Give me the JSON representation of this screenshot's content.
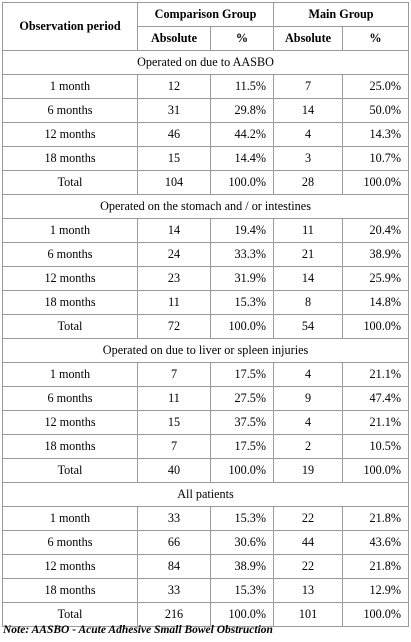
{
  "headers": {
    "observation_period": "Observation period",
    "comparison_group": "Comparison Group",
    "main_group": "Main Group",
    "absolute": "Absolute",
    "percent": "%"
  },
  "sections": [
    {
      "title": "Operated on due to AASBO",
      "rows": [
        {
          "period": "1 month",
          "cg_abs": "12",
          "cg_pct": "11.5%",
          "mg_abs": "7",
          "mg_pct": "25.0%"
        },
        {
          "period": "6 months",
          "cg_abs": "31",
          "cg_pct": "29.8%",
          "mg_abs": "14",
          "mg_pct": "50.0%"
        },
        {
          "period": "12 months",
          "cg_abs": "46",
          "cg_pct": "44.2%",
          "mg_abs": "4",
          "mg_pct": "14.3%"
        },
        {
          "period": "18 months",
          "cg_abs": "15",
          "cg_pct": "14.4%",
          "mg_abs": "3",
          "mg_pct": "10.7%"
        },
        {
          "period": "Total",
          "cg_abs": "104",
          "cg_pct": "100.0%",
          "mg_abs": "28",
          "mg_pct": "100.0%"
        }
      ]
    },
    {
      "title": "Operated on the stomach and / or intestines",
      "rows": [
        {
          "period": "1 month",
          "cg_abs": "14",
          "cg_pct": "19.4%",
          "mg_abs": "11",
          "mg_pct": "20.4%"
        },
        {
          "period": "6 months",
          "cg_abs": "24",
          "cg_pct": "33.3%",
          "mg_abs": "21",
          "mg_pct": "38.9%"
        },
        {
          "period": "12 months",
          "cg_abs": "23",
          "cg_pct": "31.9%",
          "mg_abs": "14",
          "mg_pct": "25.9%"
        },
        {
          "period": "18 months",
          "cg_abs": "11",
          "cg_pct": "15.3%",
          "mg_abs": "8",
          "mg_pct": "14.8%"
        },
        {
          "period": "Total",
          "cg_abs": "72",
          "cg_pct": "100.0%",
          "mg_abs": "54",
          "mg_pct": "100.0%"
        }
      ]
    },
    {
      "title": "Operated on due to liver or spleen injuries",
      "rows": [
        {
          "period": "1 month",
          "cg_abs": "7",
          "cg_pct": "17.5%",
          "mg_abs": "4",
          "mg_pct": "21.1%"
        },
        {
          "period": "6 months",
          "cg_abs": "11",
          "cg_pct": "27.5%",
          "mg_abs": "9",
          "mg_pct": "47.4%"
        },
        {
          "period": "12 months",
          "cg_abs": "15",
          "cg_pct": "37.5%",
          "mg_abs": "4",
          "mg_pct": "21.1%"
        },
        {
          "period": "18 months",
          "cg_abs": "7",
          "cg_pct": "17.5%",
          "mg_abs": "2",
          "mg_pct": "10.5%"
        },
        {
          "period": "Total",
          "cg_abs": "40",
          "cg_pct": "100.0%",
          "mg_abs": "19",
          "mg_pct": "100.0%"
        }
      ]
    },
    {
      "title": "All patients",
      "rows": [
        {
          "period": "1 month",
          "cg_abs": "33",
          "cg_pct": "15.3%",
          "mg_abs": "22",
          "mg_pct": "21.8%"
        },
        {
          "period": "6 months",
          "cg_abs": "66",
          "cg_pct": "30.6%",
          "mg_abs": "44",
          "mg_pct": "43.6%"
        },
        {
          "period": "12 months",
          "cg_abs": "84",
          "cg_pct": "38.9%",
          "mg_abs": "22",
          "mg_pct": "21.8%"
        },
        {
          "period": "18 months",
          "cg_abs": "33",
          "cg_pct": "15.3%",
          "mg_abs": "13",
          "mg_pct": "12.9%"
        },
        {
          "period": "Total",
          "cg_abs": "216",
          "cg_pct": "100.0%",
          "mg_abs": "101",
          "mg_pct": "100.0%"
        }
      ]
    }
  ],
  "note": "Note: AASBO - Acute Adhesive Small Bowel Obstruction"
}
